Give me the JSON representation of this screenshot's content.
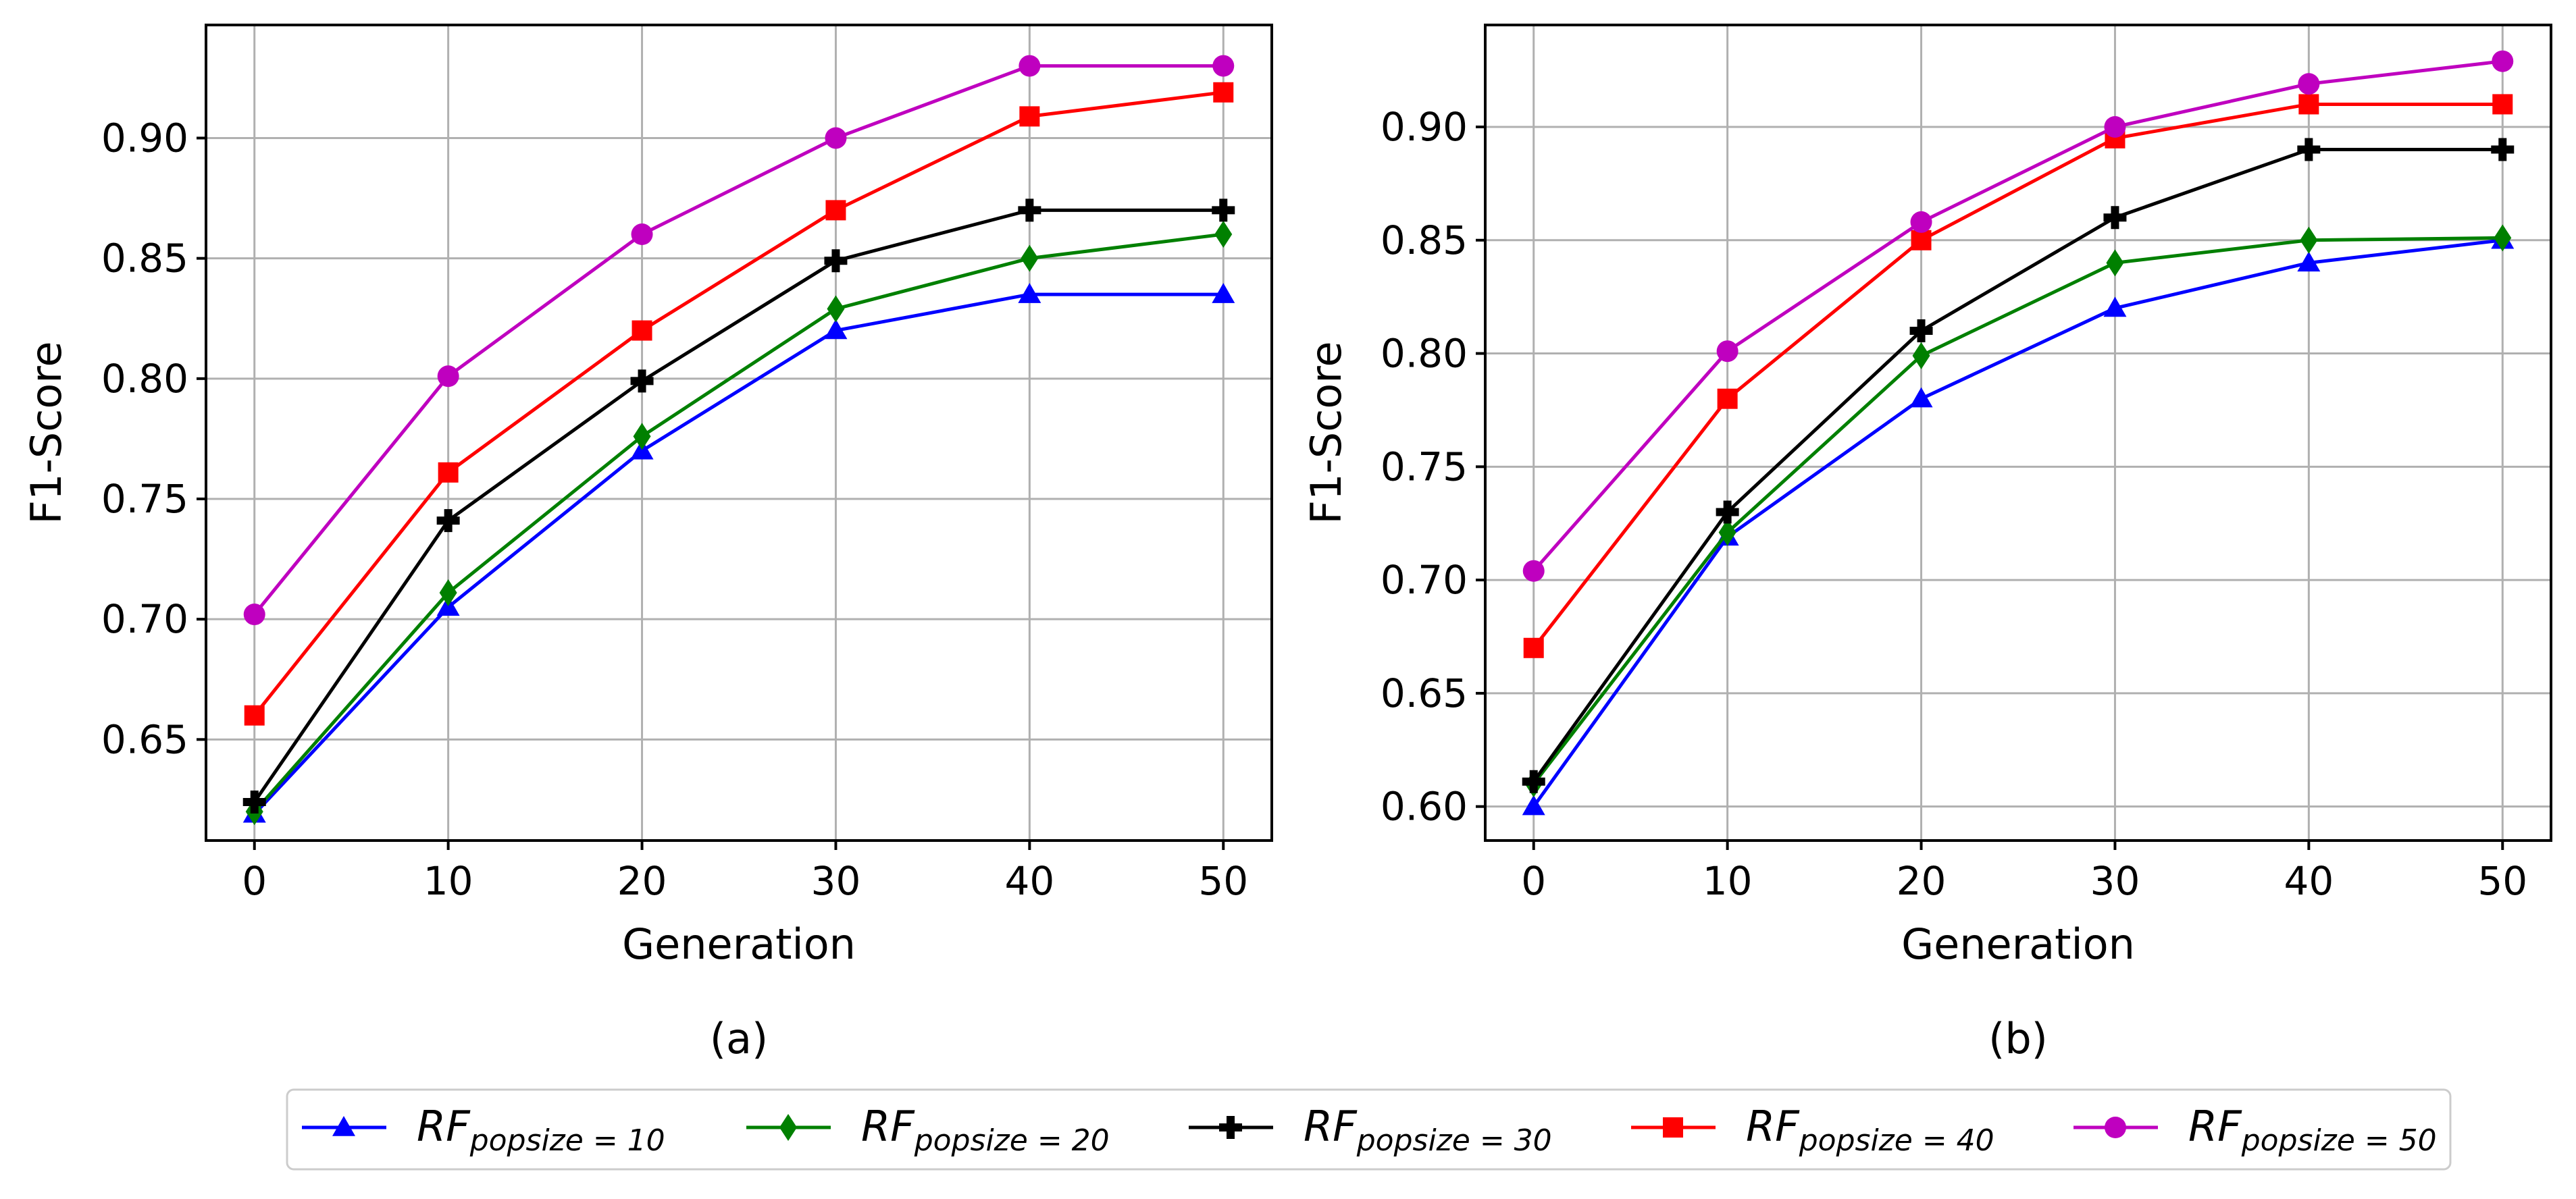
{
  "chart_data": [
    {
      "panel_label": "(a)",
      "type": "line",
      "xlabel": "Generation",
      "ylabel": "F1-Score",
      "x": [
        0,
        10,
        20,
        30,
        40,
        50
      ],
      "xlim": [
        -2.5,
        52.5
      ],
      "ylim": [
        0.608,
        0.947
      ],
      "xticks": [
        0,
        10,
        20,
        30,
        40,
        50
      ],
      "yticks": [
        0.65,
        0.7,
        0.75,
        0.8,
        0.85,
        0.9
      ],
      "ytick_labels": [
        "0.65",
        "0.70",
        "0.75",
        "0.80",
        "0.85",
        "0.90"
      ],
      "grid": true,
      "series": [
        {
          "name": "RF_popsize=10",
          "color": "#0000ff",
          "marker": "triangle",
          "values": [
            0.619,
            0.705,
            0.77,
            0.82,
            0.835,
            0.835
          ]
        },
        {
          "name": "RF_popsize=20",
          "color": "#008000",
          "marker": "diamond",
          "values": [
            0.62,
            0.711,
            0.776,
            0.829,
            0.85,
            0.86
          ]
        },
        {
          "name": "RF_popsize=30",
          "color": "#000000",
          "marker": "plus",
          "values": [
            0.624,
            0.741,
            0.799,
            0.849,
            0.87,
            0.87
          ]
        },
        {
          "name": "RF_popsize=40",
          "color": "#ff0000",
          "marker": "square",
          "values": [
            0.66,
            0.761,
            0.82,
            0.87,
            0.909,
            0.919
          ]
        },
        {
          "name": "RF_popsize=50",
          "color": "#bf00bf",
          "marker": "circle",
          "values": [
            0.702,
            0.801,
            0.86,
            0.9,
            0.93,
            0.93
          ]
        }
      ]
    },
    {
      "panel_label": "(b)",
      "type": "line",
      "xlabel": "Generation",
      "ylabel": "F1-Score",
      "x": [
        0,
        10,
        20,
        30,
        40,
        50
      ],
      "xlim": [
        -2.5,
        52.5
      ],
      "ylim": [
        0.585,
        0.945
      ],
      "xticks": [
        0,
        10,
        20,
        30,
        40,
        50
      ],
      "yticks": [
        0.6,
        0.65,
        0.7,
        0.75,
        0.8,
        0.85,
        0.9
      ],
      "ytick_labels": [
        "0.60",
        "0.65",
        "0.70",
        "0.75",
        "0.80",
        "0.85",
        "0.90"
      ],
      "grid": true,
      "series": [
        {
          "name": "RF_popsize=10",
          "color": "#0000ff",
          "marker": "triangle",
          "values": [
            0.6,
            0.719,
            0.78,
            0.82,
            0.84,
            0.85
          ]
        },
        {
          "name": "RF_popsize=20",
          "color": "#008000",
          "marker": "diamond",
          "values": [
            0.61,
            0.721,
            0.799,
            0.84,
            0.85,
            0.851
          ]
        },
        {
          "name": "RF_popsize=30",
          "color": "#000000",
          "marker": "plus",
          "values": [
            0.611,
            0.73,
            0.81,
            0.86,
            0.89,
            0.89
          ]
        },
        {
          "name": "RF_popsize=40",
          "color": "#ff0000",
          "marker": "square",
          "values": [
            0.67,
            0.78,
            0.85,
            0.895,
            0.91,
            0.91
          ]
        },
        {
          "name": "RF_popsize=50",
          "color": "#bf00bf",
          "marker": "circle",
          "values": [
            0.704,
            0.801,
            0.858,
            0.9,
            0.919,
            0.929
          ]
        }
      ]
    }
  ],
  "legend": {
    "placement": "bottom-center",
    "entries": [
      {
        "main": "RF",
        "sub": "popsize = 10",
        "color": "#0000ff",
        "marker": "triangle"
      },
      {
        "main": "RF",
        "sub": "popsize = 20",
        "color": "#008000",
        "marker": "diamond"
      },
      {
        "main": "RF",
        "sub": "popsize = 30",
        "color": "#000000",
        "marker": "plus"
      },
      {
        "main": "RF",
        "sub": "popsize = 40",
        "color": "#ff0000",
        "marker": "square"
      },
      {
        "main": "RF",
        "sub": "popsize = 50",
        "color": "#bf00bf",
        "marker": "circle"
      }
    ]
  }
}
